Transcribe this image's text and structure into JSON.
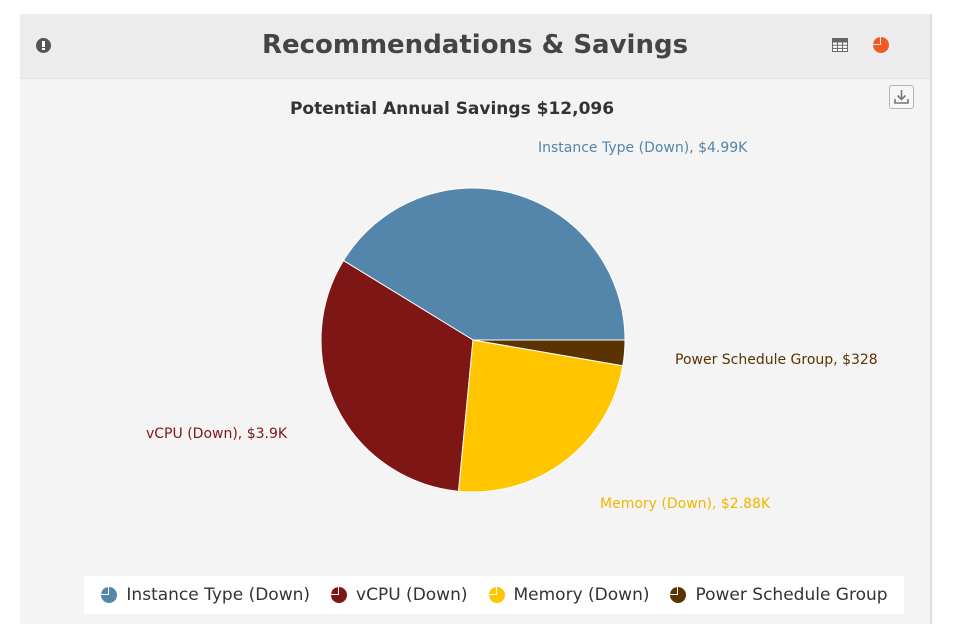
{
  "header": {
    "title": "Recommendations & Savings",
    "info_icon": "info-icon",
    "table_view_icon": "table-icon",
    "chart_view_icon": "pie-chart-icon",
    "active_view_color": "#f15a22"
  },
  "download_icon": "download-icon",
  "chart_data": {
    "type": "pie",
    "title": "Potential Annual Savings $12,096",
    "slices": [
      {
        "name": "Instance Type (Down)",
        "value": 4990,
        "label": "Instance Type (Down), $4.99K",
        "color": "#5486ab"
      },
      {
        "name": "vCPU (Down)",
        "value": 3900,
        "label": "vCPU (Down), $3.9K",
        "color": "#7f1616"
      },
      {
        "name": "Memory (Down)",
        "value": 2880,
        "label": "Memory (Down), $2.88K",
        "color": "#ffc600"
      },
      {
        "name": "Power Schedule Group",
        "value": 328,
        "label": "Power Schedule Group, $328",
        "color": "#5b3300"
      }
    ],
    "legend": {
      "placement": "bottom",
      "items": [
        "Instance Type (Down)",
        "vCPU (Down)",
        "Memory (Down)",
        "Power Schedule Group"
      ]
    }
  }
}
